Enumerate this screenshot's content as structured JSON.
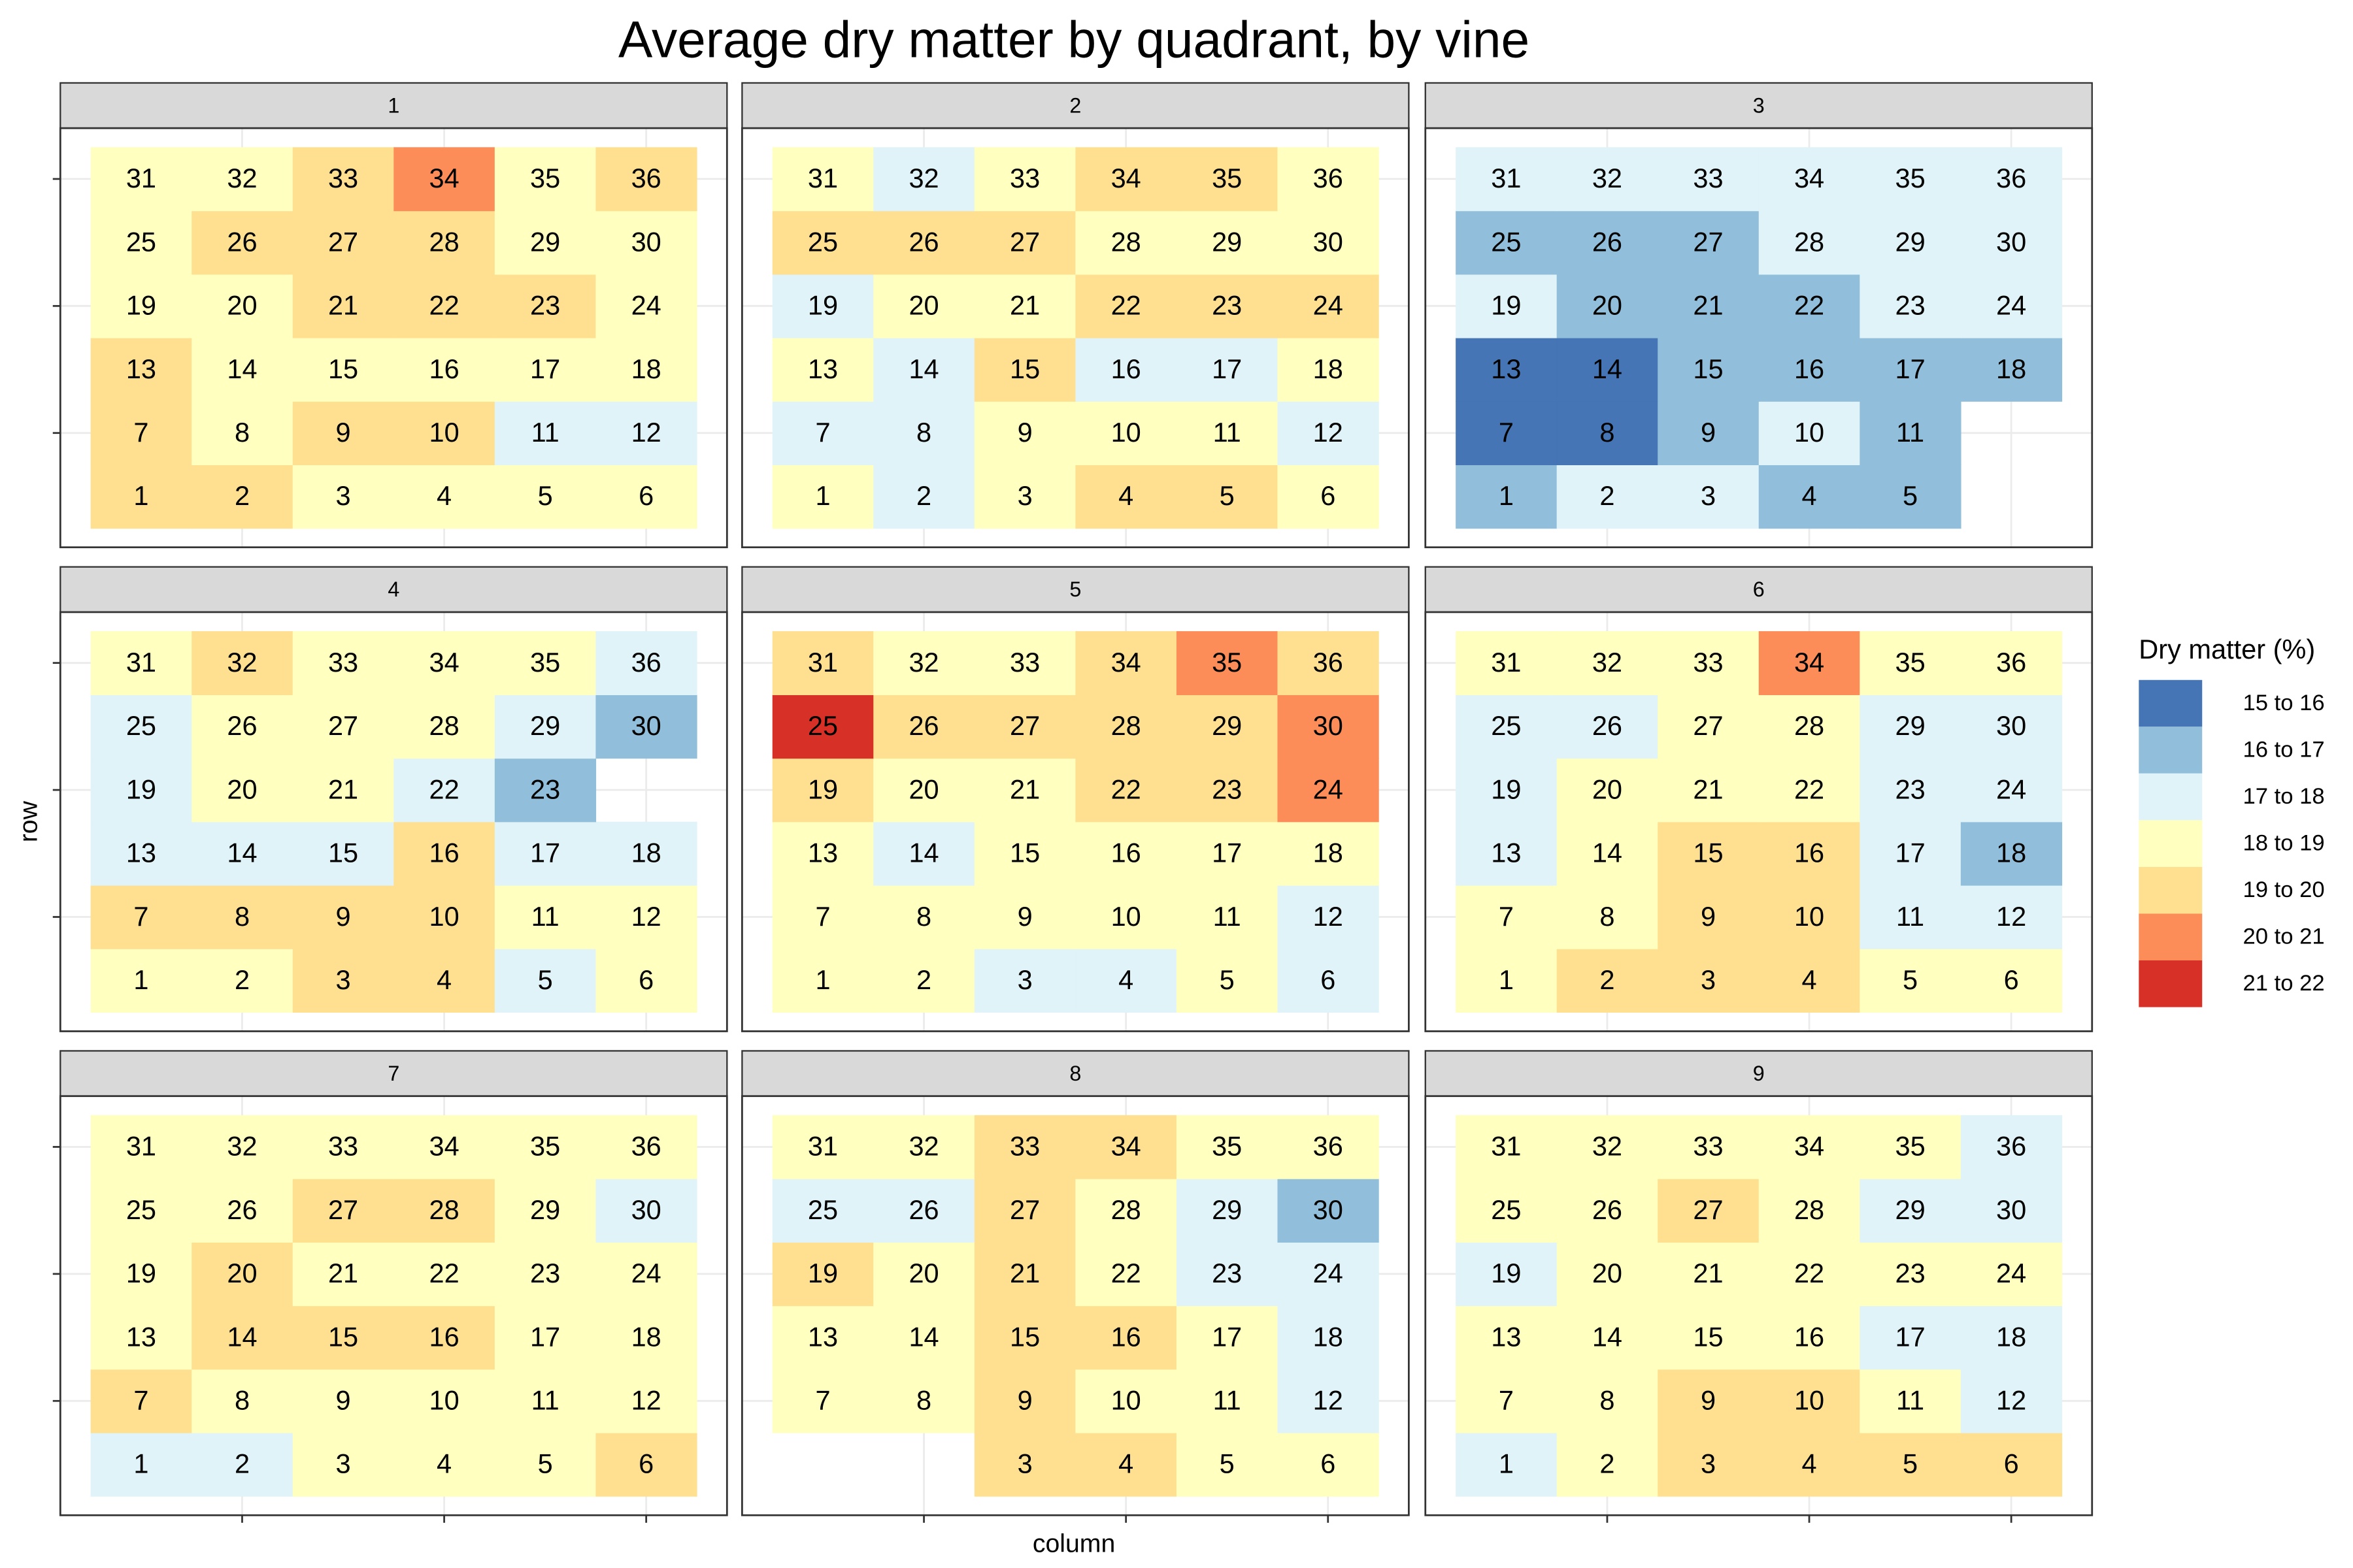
{
  "chart_data": {
    "type": "heatmap",
    "title": "Average dry matter by quadrant, by vine",
    "x_label": "column",
    "y_label": "row",
    "xlim": [
      0.2,
      6.8
    ],
    "ylim": [
      0.2,
      6.8
    ],
    "xticks": [
      2,
      4,
      6
    ],
    "yticks": [
      2,
      4,
      6
    ],
    "grid": true,
    "legend": {
      "title": "Dry matter (%)",
      "position": "right",
      "items": [
        {
          "label": "15 to 16",
          "color": "#4575b4"
        },
        {
          "label": "16 to 17",
          "color": "#91bfdb"
        },
        {
          "label": "17 to 18",
          "color": "#e0f3f8"
        },
        {
          "label": "18 to 19",
          "color": "#ffffbf"
        },
        {
          "label": "19 to 20",
          "color": "#fee090"
        },
        {
          "label": "20 to 21",
          "color": "#fc8d59"
        },
        {
          "label": "21 to 22",
          "color": "#d73027"
        }
      ]
    },
    "facets": [
      {
        "label": 1,
        "cells": [
          1,
          2,
          3,
          4,
          5,
          6,
          7,
          8,
          9,
          10,
          11,
          12,
          13,
          14,
          15,
          16,
          17,
          18,
          19,
          20,
          21,
          22,
          23,
          24,
          25,
          26,
          27,
          28,
          29,
          30,
          31,
          32,
          33,
          34,
          35,
          36
        ],
        "classes": [
          "19 to 20",
          "19 to 20",
          "18 to 19",
          "18 to 19",
          "18 to 19",
          "18 to 19",
          "19 to 20",
          "18 to 19",
          "19 to 20",
          "19 to 20",
          "17 to 18",
          "17 to 18",
          "19 to 20",
          "18 to 19",
          "18 to 19",
          "18 to 19",
          "18 to 19",
          "18 to 19",
          "18 to 19",
          "18 to 19",
          "19 to 20",
          "19 to 20",
          "19 to 20",
          "18 to 19",
          "18 to 19",
          "19 to 20",
          "19 to 20",
          "19 to 20",
          "18 to 19",
          "18 to 19",
          "18 to 19",
          "18 to 19",
          "19 to 20",
          "20 to 21",
          "18 to 19",
          "19 to 20"
        ]
      },
      {
        "label": 2,
        "cells": [
          1,
          2,
          3,
          4,
          5,
          6,
          7,
          8,
          9,
          10,
          11,
          12,
          13,
          14,
          15,
          16,
          17,
          18,
          19,
          20,
          21,
          22,
          23,
          24,
          25,
          26,
          27,
          28,
          29,
          30,
          31,
          32,
          33,
          34,
          35,
          36
        ],
        "classes": [
          "18 to 19",
          "17 to 18",
          "18 to 19",
          "19 to 20",
          "19 to 20",
          "18 to 19",
          "17 to 18",
          "17 to 18",
          "18 to 19",
          "18 to 19",
          "18 to 19",
          "17 to 18",
          "18 to 19",
          "17 to 18",
          "19 to 20",
          "17 to 18",
          "17 to 18",
          "18 to 19",
          "17 to 18",
          "18 to 19",
          "18 to 19",
          "19 to 20",
          "19 to 20",
          "19 to 20",
          "19 to 20",
          "19 to 20",
          "19 to 20",
          "18 to 19",
          "18 to 19",
          "18 to 19",
          "18 to 19",
          "17 to 18",
          "18 to 19",
          "19 to 20",
          "19 to 20",
          "18 to 19"
        ]
      },
      {
        "label": 3,
        "cells": [
          1,
          2,
          3,
          4,
          5,
          7,
          8,
          9,
          10,
          11,
          13,
          14,
          15,
          16,
          17,
          18,
          19,
          20,
          21,
          22,
          23,
          24,
          25,
          26,
          27,
          28,
          29,
          30,
          31,
          32,
          33,
          34,
          35,
          36
        ],
        "classes": [
          "16 to 17",
          "17 to 18",
          "17 to 18",
          "16 to 17",
          "16 to 17",
          "15 to 16",
          "15 to 16",
          "16 to 17",
          "17 to 18",
          "16 to 17",
          "15 to 16",
          "15 to 16",
          "16 to 17",
          "16 to 17",
          "16 to 17",
          "16 to 17",
          "17 to 18",
          "16 to 17",
          "16 to 17",
          "16 to 17",
          "17 to 18",
          "17 to 18",
          "16 to 17",
          "16 to 17",
          "16 to 17",
          "17 to 18",
          "17 to 18",
          "17 to 18",
          "17 to 18",
          "17 to 18",
          "17 to 18",
          "17 to 18",
          "17 to 18",
          "17 to 18"
        ]
      },
      {
        "label": 4,
        "cells": [
          1,
          2,
          3,
          4,
          5,
          6,
          7,
          8,
          9,
          10,
          11,
          12,
          13,
          14,
          15,
          16,
          17,
          18,
          19,
          20,
          21,
          22,
          23,
          25,
          26,
          27,
          28,
          29,
          30,
          31,
          32,
          33,
          34,
          35,
          36
        ],
        "classes": [
          "18 to 19",
          "18 to 19",
          "19 to 20",
          "19 to 20",
          "17 to 18",
          "18 to 19",
          "19 to 20",
          "19 to 20",
          "19 to 20",
          "19 to 20",
          "18 to 19",
          "18 to 19",
          "17 to 18",
          "17 to 18",
          "17 to 18",
          "19 to 20",
          "17 to 18",
          "17 to 18",
          "17 to 18",
          "18 to 19",
          "18 to 19",
          "17 to 18",
          "16 to 17",
          "17 to 18",
          "18 to 19",
          "18 to 19",
          "18 to 19",
          "17 to 18",
          "16 to 17",
          "18 to 19",
          "19 to 20",
          "18 to 19",
          "18 to 19",
          "18 to 19",
          "17 to 18"
        ]
      },
      {
        "label": 5,
        "cells": [
          1,
          2,
          3,
          4,
          5,
          6,
          7,
          8,
          9,
          10,
          11,
          12,
          13,
          14,
          15,
          16,
          17,
          18,
          19,
          20,
          21,
          22,
          23,
          24,
          25,
          26,
          27,
          28,
          29,
          30,
          31,
          32,
          33,
          34,
          35,
          36
        ],
        "classes": [
          "18 to 19",
          "18 to 19",
          "17 to 18",
          "17 to 18",
          "18 to 19",
          "17 to 18",
          "18 to 19",
          "18 to 19",
          "18 to 19",
          "18 to 19",
          "18 to 19",
          "17 to 18",
          "18 to 19",
          "17 to 18",
          "18 to 19",
          "18 to 19",
          "18 to 19",
          "18 to 19",
          "19 to 20",
          "18 to 19",
          "18 to 19",
          "19 to 20",
          "19 to 20",
          "20 to 21",
          "21 to 22",
          "19 to 20",
          "19 to 20",
          "19 to 20",
          "19 to 20",
          "20 to 21",
          "19 to 20",
          "18 to 19",
          "18 to 19",
          "19 to 20",
          "20 to 21",
          "19 to 20"
        ]
      },
      {
        "label": 6,
        "cells": [
          1,
          2,
          3,
          4,
          5,
          6,
          7,
          8,
          9,
          10,
          11,
          12,
          13,
          14,
          15,
          16,
          17,
          18,
          19,
          20,
          21,
          22,
          23,
          24,
          25,
          26,
          27,
          28,
          29,
          30,
          31,
          32,
          33,
          34,
          35,
          36
        ],
        "classes": [
          "18 to 19",
          "19 to 20",
          "19 to 20",
          "19 to 20",
          "18 to 19",
          "18 to 19",
          "18 to 19",
          "18 to 19",
          "19 to 20",
          "19 to 20",
          "17 to 18",
          "17 to 18",
          "17 to 18",
          "18 to 19",
          "19 to 20",
          "19 to 20",
          "17 to 18",
          "16 to 17",
          "17 to 18",
          "18 to 19",
          "18 to 19",
          "18 to 19",
          "17 to 18",
          "17 to 18",
          "17 to 18",
          "17 to 18",
          "18 to 19",
          "18 to 19",
          "17 to 18",
          "17 to 18",
          "18 to 19",
          "18 to 19",
          "18 to 19",
          "20 to 21",
          "18 to 19",
          "18 to 19"
        ]
      },
      {
        "label": 7,
        "cells": [
          1,
          2,
          3,
          4,
          5,
          6,
          7,
          8,
          9,
          10,
          11,
          12,
          13,
          14,
          15,
          16,
          17,
          18,
          19,
          20,
          21,
          22,
          23,
          24,
          25,
          26,
          27,
          28,
          29,
          30,
          31,
          32,
          33,
          34,
          35,
          36
        ],
        "classes": [
          "17 to 18",
          "17 to 18",
          "18 to 19",
          "18 to 19",
          "18 to 19",
          "19 to 20",
          "19 to 20",
          "18 to 19",
          "18 to 19",
          "18 to 19",
          "18 to 19",
          "18 to 19",
          "18 to 19",
          "19 to 20",
          "19 to 20",
          "19 to 20",
          "18 to 19",
          "18 to 19",
          "18 to 19",
          "19 to 20",
          "18 to 19",
          "18 to 19",
          "18 to 19",
          "18 to 19",
          "18 to 19",
          "18 to 19",
          "19 to 20",
          "19 to 20",
          "18 to 19",
          "17 to 18",
          "18 to 19",
          "18 to 19",
          "18 to 19",
          "18 to 19",
          "18 to 19",
          "18 to 19"
        ]
      },
      {
        "label": 8,
        "cells": [
          3,
          4,
          5,
          6,
          7,
          8,
          9,
          10,
          11,
          12,
          13,
          14,
          15,
          16,
          17,
          18,
          19,
          20,
          21,
          22,
          23,
          24,
          25,
          26,
          27,
          28,
          29,
          30,
          31,
          32,
          33,
          34,
          35,
          36
        ],
        "classes": [
          "19 to 20",
          "19 to 20",
          "18 to 19",
          "18 to 19",
          "18 to 19",
          "18 to 19",
          "19 to 20",
          "18 to 19",
          "18 to 19",
          "17 to 18",
          "18 to 19",
          "18 to 19",
          "19 to 20",
          "19 to 20",
          "18 to 19",
          "17 to 18",
          "19 to 20",
          "18 to 19",
          "19 to 20",
          "18 to 19",
          "17 to 18",
          "17 to 18",
          "17 to 18",
          "17 to 18",
          "19 to 20",
          "18 to 19",
          "17 to 18",
          "16 to 17",
          "18 to 19",
          "18 to 19",
          "19 to 20",
          "19 to 20",
          "18 to 19",
          "18 to 19"
        ]
      },
      {
        "label": 9,
        "cells": [
          1,
          2,
          3,
          4,
          5,
          6,
          7,
          8,
          9,
          10,
          11,
          12,
          13,
          14,
          15,
          16,
          17,
          18,
          19,
          20,
          21,
          22,
          23,
          24,
          25,
          26,
          27,
          28,
          29,
          30,
          31,
          32,
          33,
          34,
          35,
          36
        ],
        "classes": [
          "17 to 18",
          "18 to 19",
          "19 to 20",
          "19 to 20",
          "19 to 20",
          "19 to 20",
          "18 to 19",
          "18 to 19",
          "19 to 20",
          "19 to 20",
          "18 to 19",
          "17 to 18",
          "18 to 19",
          "18 to 19",
          "18 to 19",
          "18 to 19",
          "17 to 18",
          "17 to 18",
          "17 to 18",
          "18 to 19",
          "18 to 19",
          "18 to 19",
          "18 to 19",
          "18 to 19",
          "18 to 19",
          "18 to 19",
          "19 to 20",
          "18 to 19",
          "17 to 18",
          "17 to 18",
          "18 to 19",
          "18 to 19",
          "18 to 19",
          "18 to 19",
          "18 to 19",
          "17 to 18"
        ]
      }
    ]
  }
}
